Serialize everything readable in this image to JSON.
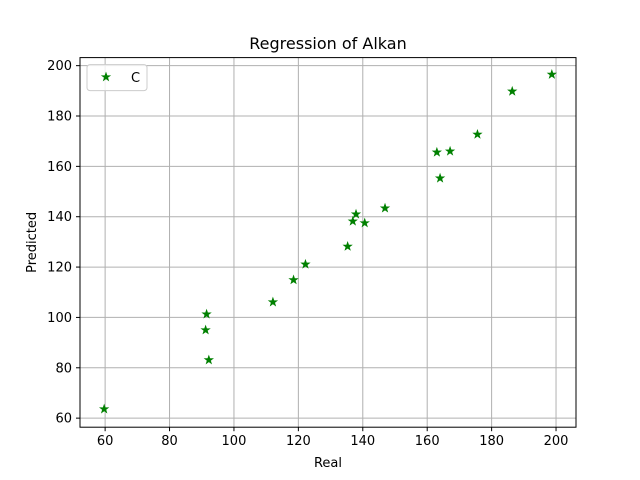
{
  "chart_data": {
    "type": "scatter",
    "title": "Regression of Alkan",
    "xlabel": "Real",
    "ylabel": "Predicted",
    "xlim": [
      52.2,
      206.2
    ],
    "ylim": [
      56.4,
      203.2
    ],
    "xticks": [
      60,
      80,
      100,
      120,
      140,
      160,
      180,
      200
    ],
    "yticks": [
      60,
      80,
      100,
      120,
      140,
      160,
      180,
      200
    ],
    "grid": true,
    "legend_position": "top-left",
    "series": [
      {
        "name": "C",
        "marker": "star",
        "color": "#008000",
        "points": [
          [
            59.7,
            63.6
          ],
          [
            91.2,
            95.0
          ],
          [
            91.5,
            101.3
          ],
          [
            92.2,
            83.1
          ],
          [
            112.1,
            106.1
          ],
          [
            118.5,
            114.9
          ],
          [
            122.2,
            121.1
          ],
          [
            135.3,
            128.2
          ],
          [
            136.9,
            138.2
          ],
          [
            137.9,
            141.0
          ],
          [
            140.6,
            137.5
          ],
          [
            146.9,
            143.4
          ],
          [
            163.0,
            165.6
          ],
          [
            164.0,
            155.3
          ],
          [
            167.1,
            166.0
          ],
          [
            175.6,
            172.7
          ],
          [
            186.4,
            189.8
          ],
          [
            198.7,
            196.5
          ]
        ]
      }
    ]
  }
}
